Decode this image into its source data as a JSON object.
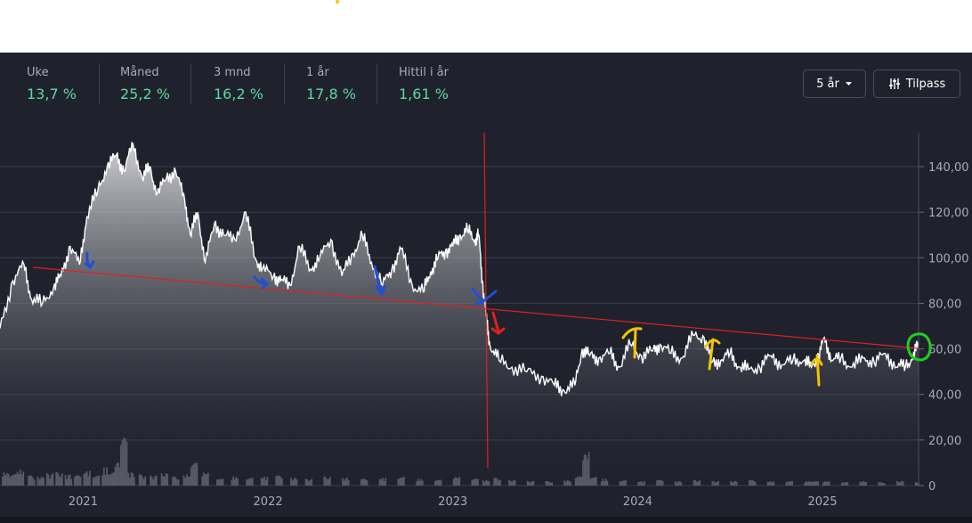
{
  "stats": [
    {
      "label": "Uke",
      "value": "13,7 %"
    },
    {
      "label": "Måned",
      "value": "25,2 %"
    },
    {
      "label": "3 mnd",
      "value": "16,2 %"
    },
    {
      "label": "1 år",
      "value": "17,8 %"
    },
    {
      "label": "Hittil i år",
      "value": "1,61 %"
    }
  ],
  "controls": {
    "period": "5 år",
    "customize": "Tilpass"
  },
  "icons": {
    "dropdown": "caret-down-icon",
    "customize": "sliders-icon"
  },
  "colors": {
    "background": "#1f222d",
    "positive": "#5fd7a0",
    "line": "#ffffff",
    "trendline": "#e02020",
    "annotation_blue": "#1f4fd6",
    "annotation_red": "#e02020",
    "annotation_yellow": "#f5c400",
    "annotation_green": "#22cc22"
  },
  "chart_data": {
    "type": "area",
    "x_ticks": [
      "2021",
      "2022",
      "2023",
      "2024",
      "2025"
    ],
    "y_ticks": [
      "0",
      "20,00",
      "40,00",
      "60,00",
      "80,00",
      "100,00",
      "120,00",
      "140,00"
    ],
    "ylim": [
      0,
      160
    ],
    "xlim": [
      2020.55,
      2025.52
    ],
    "grid": true,
    "series": [
      {
        "x": [
          2020.55,
          2020.62,
          2020.68,
          2020.72,
          2020.78,
          2020.84,
          2020.88,
          2020.93,
          2020.98,
          2021.02,
          2021.08,
          2021.13,
          2021.18,
          2021.22,
          2021.27,
          2021.32,
          2021.36,
          2021.4,
          2021.45,
          2021.5,
          2021.55,
          2021.58,
          2021.62,
          2021.66,
          2021.71,
          2021.76,
          2021.82,
          2021.88,
          2021.93,
          2021.97,
          2022.03,
          2022.07,
          2022.12,
          2022.17,
          2022.23,
          2022.28,
          2022.34,
          2022.4,
          2022.46,
          2022.51,
          2022.56,
          2022.62,
          2022.67,
          2022.72,
          2022.78,
          2022.84,
          2022.88,
          2022.92,
          2022.96,
          2023.0,
          2023.04,
          2023.08,
          2023.12,
          2023.14,
          2023.16,
          2023.18,
          2023.2,
          2023.25,
          2023.32,
          2023.4,
          2023.48,
          2023.55,
          2023.6,
          2023.66,
          2023.7,
          2023.74,
          2023.79,
          2023.85,
          2023.9,
          2023.96,
          2024.02,
          2024.08,
          2024.12,
          2024.18,
          2024.24,
          2024.3,
          2024.36,
          2024.4,
          2024.45,
          2024.5,
          2024.55,
          2024.6,
          2024.66,
          2024.72,
          2024.78,
          2024.84,
          2024.9,
          2024.94,
          2024.98,
          2025.01,
          2025.05,
          2025.1,
          2025.16,
          2025.22,
          2025.28,
          2025.34,
          2025.4,
          2025.45,
          2025.49,
          2025.52
        ],
        "y": [
          69,
          90,
          97,
          82,
          80,
          87,
          92,
          105,
          97,
          118,
          130,
          140,
          145,
          138,
          150,
          135,
          140,
          128,
          135,
          138,
          125,
          110,
          120,
          98,
          115,
          110,
          108,
          120,
          100,
          95,
          92,
          90,
          88,
          105,
          95,
          100,
          108,
          92,
          102,
          110,
          98,
          88,
          95,
          104,
          88,
          85,
          94,
          100,
          103,
          105,
          110,
          112,
          108,
          110,
          90,
          74,
          62,
          55,
          52,
          50,
          48,
          44,
          42,
          44,
          60,
          57,
          56,
          58,
          52,
          62,
          57,
          59,
          62,
          58,
          56,
          66,
          65,
          54,
          55,
          58,
          52,
          51,
          52,
          57,
          53,
          55,
          55,
          52,
          57,
          65,
          55,
          56,
          52,
          56,
          54,
          58,
          52,
          53,
          56,
          63
        ]
      }
    ],
    "volume": {
      "x": [
        2020.56,
        2020.6,
        2020.64,
        2020.7,
        2020.75,
        2020.8,
        2020.85,
        2020.9,
        2020.95,
        2021.0,
        2021.05,
        2021.1,
        2021.14,
        2021.17,
        2021.2,
        2021.24,
        2021.3,
        2021.36,
        2021.42,
        2021.48,
        2021.54,
        2021.58,
        2021.64,
        2021.72,
        2021.8,
        2021.88,
        2021.96,
        2022.04,
        2022.12,
        2022.2,
        2022.3,
        2022.4,
        2022.5,
        2022.6,
        2022.7,
        2022.8,
        2022.9,
        2023.0,
        2023.1,
        2023.16,
        2023.22,
        2023.3,
        2023.4,
        2023.5,
        2023.6,
        2023.66,
        2023.7,
        2023.74,
        2023.8,
        2023.9,
        2024.0,
        2024.1,
        2024.2,
        2024.3,
        2024.4,
        2024.5,
        2024.6,
        2024.7,
        2024.8,
        2024.9,
        2024.94,
        2025.0,
        2025.1,
        2025.2,
        2025.3,
        2025.4,
        2025.5
      ],
      "y": [
        12,
        10,
        14,
        9,
        8,
        11,
        12,
        10,
        9,
        13,
        10,
        16,
        15,
        22,
        42,
        12,
        10,
        9,
        11,
        8,
        10,
        20,
        12,
        9,
        8,
        7,
        8,
        9,
        7,
        6,
        8,
        7,
        6,
        7,
        8,
        6,
        7,
        8,
        6,
        5,
        7,
        5,
        4,
        4,
        5,
        8,
        30,
        10,
        6,
        5,
        4,
        5,
        4,
        5,
        4,
        4,
        5,
        4,
        4,
        4,
        6,
        4,
        3,
        4,
        3,
        4,
        3
      ]
    }
  }
}
